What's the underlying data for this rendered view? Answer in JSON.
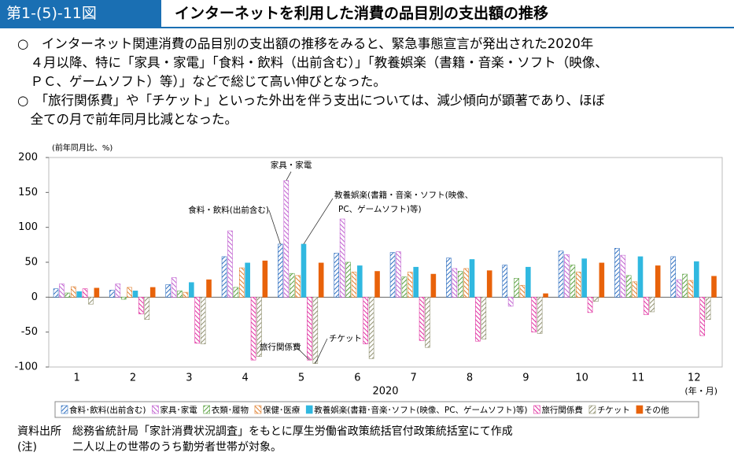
{
  "header": {
    "figure_number": "第1-(5)-11図",
    "title": "インターネットを利用した消費の品目別の支出額の推移"
  },
  "paragraphs": [
    [
      "○　インターネット関連消費の品目別の支出額の推移をみると、緊急事態宣言が発出された2020年",
      "　４月以降、特に「家具・家電」「食料・飲料（出前含む）」「教養娯楽（書籍・音楽・ソフト（映像、",
      "　ＰＣ、ゲームソフト）等）」などで総じて高い伸びとなった。"
    ],
    [
      "○　「旅行関係費」や「チケット」といった外出を伴う支出については、減少傾向が顕著であり、ほぼ",
      "　全ての月で前年同月比減となった。"
    ]
  ],
  "chart_data": {
    "type": "bar",
    "y_unit": "(前年同月比、%)",
    "x_label": "2020",
    "x_unit": "(年・月)",
    "categories": [
      "1",
      "2",
      "3",
      "4",
      "5",
      "6",
      "7",
      "8",
      "9",
      "10",
      "11",
      "12"
    ],
    "ylim": [
      -100,
      200
    ],
    "yticks": [
      -100,
      -50,
      0,
      50,
      100,
      150,
      200
    ],
    "grid": false,
    "series": [
      {
        "name": "食料･飲料(出前含む)",
        "color": "#2f6fc0",
        "pattern": "hatch",
        "values": [
          12,
          10,
          18,
          58,
          76,
          63,
          64,
          56,
          46,
          66,
          70,
          58
        ]
      },
      {
        "name": "家具･家電",
        "color": "#c060d0",
        "pattern": "hatch",
        "values": [
          19,
          19,
          28,
          95,
          167,
          112,
          65,
          41,
          -13,
          61,
          60,
          25
        ]
      },
      {
        "name": "衣類･履物",
        "color": "#5aa040",
        "pattern": "hatch",
        "values": [
          6,
          -3,
          9,
          14,
          34,
          50,
          29,
          37,
          27,
          46,
          31,
          33
        ]
      },
      {
        "name": "保健･医療",
        "color": "#e08030",
        "pattern": "hatch",
        "values": [
          15,
          14,
          7,
          42,
          31,
          36,
          36,
          41,
          17,
          36,
          22,
          24
        ]
      },
      {
        "name": "教養娯楽(書籍･音楽･ソフト(映像、PC、ゲームソフト)等)",
        "color": "#30b8e0",
        "pattern": "solid",
        "values": [
          8,
          9,
          21,
          49,
          76,
          45,
          43,
          54,
          43,
          55,
          58,
          51
        ]
      },
      {
        "name": "旅行関係費",
        "color": "#e030a0",
        "pattern": "hatch",
        "values": [
          12,
          -24,
          -66,
          -90,
          -90,
          -67,
          -62,
          -63,
          -50,
          -22,
          -25,
          -55
        ]
      },
      {
        "name": "チケット",
        "color": "#909070",
        "pattern": "hatch",
        "values": [
          -10,
          -32,
          -67,
          -85,
          -95,
          -88,
          -72,
          -60,
          -52,
          -6,
          -21,
          -32
        ]
      },
      {
        "name": "その他",
        "color": "#e8620a",
        "pattern": "solid",
        "values": [
          13,
          14,
          25,
          52,
          49,
          37,
          33,
          38,
          5,
          49,
          45,
          30
        ]
      }
    ],
    "annotations": [
      "家具・家電",
      "教養娯楽(書籍・音楽・ソフト(映像、",
      "PC、ゲームソフト)等)",
      "食料・飲料(出前含む)",
      "旅行関係費",
      "チケット"
    ]
  },
  "footer": [
    {
      "label": "資料出所",
      "text": "総務省統計局「家計消費状況調査」をもとに厚生労働省政策統括官付政策統括室にて作成"
    },
    {
      "label": "(注)",
      "text": "二人以上の世帯のうち勤労者世帯が対象。"
    }
  ]
}
